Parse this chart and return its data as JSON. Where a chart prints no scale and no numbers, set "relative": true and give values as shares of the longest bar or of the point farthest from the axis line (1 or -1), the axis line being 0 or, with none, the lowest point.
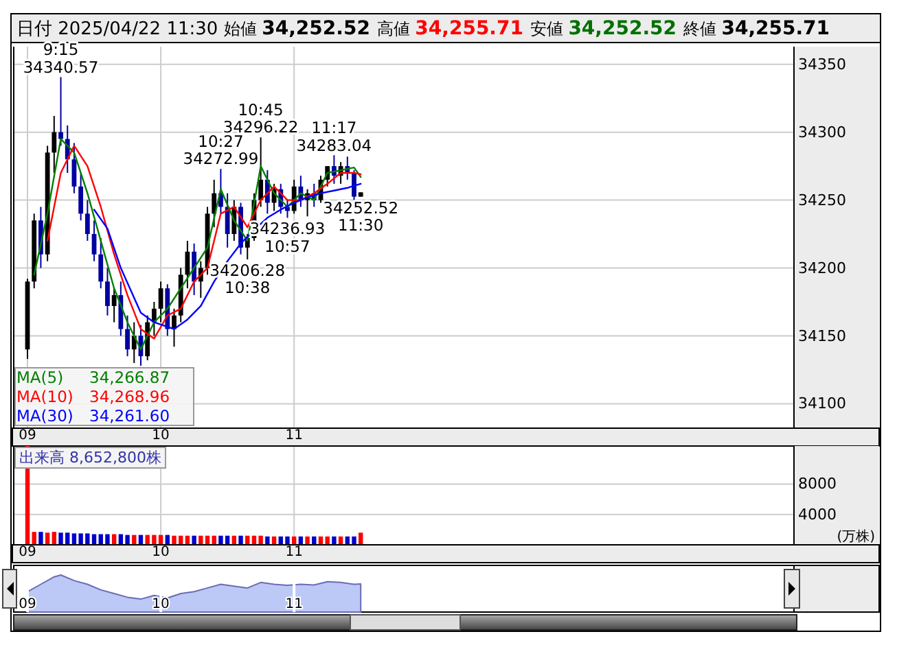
{
  "chart_data": [
    {
      "type": "candlestick",
      "title": "日付 2025/04/22 11:30",
      "annotations": [
        "始値 34,252.52",
        "高値 34,255.71",
        "安値 34,252.52",
        "終値 34,255.71",
        "34,266.87",
        "34,268.96",
        "34,261.60",
        {
          "text": "9:15\n34340.57",
          "x": 9.25,
          "y": 34340.57
        },
        {
          "text": "10:27\n34272.99",
          "x": 10.45,
          "y": 34272.99
        },
        {
          "text": "10:45\n34296.22",
          "x": 10.75,
          "y": 34296.22
        },
        {
          "text": "11:17\n34283.04",
          "x": 11.3,
          "y": 34283.04
        },
        {
          "text": "34206.28\n10:38",
          "x": 10.65,
          "y": 34206.28
        },
        {
          "text": "34236.93\n10:57",
          "x": 10.95,
          "y": 34236.93
        },
        {
          "text": "34252.52\n11:30",
          "x": 11.5,
          "y": 34252.52
        }
      ],
      "x": [
        9,
        9.05,
        9.1,
        9.15,
        9.2,
        9.25,
        9.3,
        9.35,
        9.4,
        9.45,
        9.5,
        9.55,
        9.6,
        9.65,
        9.7,
        9.75,
        9.8,
        9.85,
        9.9,
        9.95,
        10,
        10.05,
        10.1,
        10.15,
        10.2,
        10.25,
        10.3,
        10.35,
        10.4,
        10.45,
        10.5,
        10.55,
        10.6,
        10.65,
        10.7,
        10.75,
        10.8,
        10.85,
        10.9,
        10.95,
        11,
        11.05,
        11.1,
        11.15,
        11.2,
        11.25,
        11.3,
        11.35,
        11.4,
        11.45,
        11.5
      ],
      "ohlc": [
        [
          34140,
          34192,
          34133,
          34190
        ],
        [
          34190,
          34240,
          34185,
          34235
        ],
        [
          34235,
          34245,
          34200,
          34210
        ],
        [
          34210,
          34290,
          34205,
          34285
        ],
        [
          34285,
          34312,
          34270,
          34300
        ],
        [
          34300,
          34340.57,
          34290,
          34295
        ],
        [
          34295,
          34305,
          34270,
          34280
        ],
        [
          34280,
          34292,
          34255,
          34260
        ],
        [
          34260,
          34270,
          34235,
          34240
        ],
        [
          34240,
          34250,
          34220,
          34225
        ],
        [
          34225,
          34235,
          34205,
          34210
        ],
        [
          34210,
          34222,
          34185,
          34190
        ],
        [
          34190,
          34200,
          34165,
          34172
        ],
        [
          34172,
          34185,
          34160,
          34180
        ],
        [
          34180,
          34190,
          34150,
          34155
        ],
        [
          34155,
          34165,
          34135,
          34140
        ],
        [
          34140,
          34160,
          34130,
          34150
        ],
        [
          34150,
          34158,
          34128,
          34135
        ],
        [
          34135,
          34165,
          34132,
          34160
        ],
        [
          34160,
          34175,
          34150,
          34170
        ],
        [
          34170,
          34190,
          34160,
          34185
        ],
        [
          34185,
          34188,
          34150,
          34155
        ],
        [
          34155,
          34170,
          34142,
          34165
        ],
        [
          34165,
          34200,
          34160,
          34195
        ],
        [
          34195,
          34220,
          34185,
          34212
        ],
        [
          34212,
          34218,
          34180,
          34190
        ],
        [
          34190,
          34205,
          34178,
          34200
        ],
        [
          34200,
          34245,
          34195,
          34240
        ],
        [
          34240,
          34265,
          34230,
          34255
        ],
        [
          34255,
          34272.99,
          34240,
          34245
        ],
        [
          34245,
          34255,
          34215,
          34225
        ],
        [
          34225,
          34250,
          34220,
          34245
        ],
        [
          34245,
          34248,
          34210,
          34215
        ],
        [
          34215,
          34225,
          34206.28,
          34222
        ],
        [
          34222,
          34255,
          34220,
          34250
        ],
        [
          34250,
          34296.22,
          34245,
          34265
        ],
        [
          34265,
          34272,
          34240,
          34248
        ],
        [
          34248,
          34262,
          34242,
          34258
        ],
        [
          34258,
          34262,
          34240,
          34245
        ],
        [
          34245,
          34250,
          34236.93,
          34242
        ],
        [
          34242,
          34265,
          34240,
          34260
        ],
        [
          34260,
          34268,
          34245,
          34250
        ],
        [
          34250,
          34258,
          34238,
          34255
        ],
        [
          34255,
          34262,
          34245,
          34250
        ],
        [
          34250,
          34268,
          34248,
          34265
        ],
        [
          34265,
          34275,
          34260,
          34275
        ],
        [
          34275,
          34283.04,
          34262,
          34268
        ],
        [
          34268,
          34278,
          34262,
          34275
        ],
        [
          34275,
          34282,
          34265,
          34270
        ],
        [
          34270,
          34272,
          34250,
          34252.52
        ],
        [
          34252.52,
          34255.71,
          34252.52,
          34255.71
        ]
      ],
      "colors": [
        "#000000",
        "#000000",
        "#0000a0",
        "#000000",
        "#000000",
        "#0000a0",
        "#0000a0",
        "#0000a0",
        "#0000a0",
        "#0000a0",
        "#0000a0",
        "#0000a0",
        "#0000a0",
        "#000000",
        "#0000a0",
        "#0000a0",
        "#000000",
        "#0000a0",
        "#000000",
        "#000000",
        "#000000",
        "#0000a0",
        "#000000",
        "#000000",
        "#000000",
        "#0000a0",
        "#000000",
        "#000000",
        "#000000",
        "#0000a0",
        "#0000a0",
        "#000000",
        "#0000a0",
        "#000000",
        "#000000",
        "#000000",
        "#0000a0",
        "#000000",
        "#0000a0",
        "#0000a0",
        "#000000",
        "#0000a0",
        "#000000",
        "#0000a0",
        "#000000",
        "#000000",
        "#0000a0",
        "#000000",
        "#0000a0",
        "#0000a0",
        "#000000"
      ],
      "series": [
        {
          "type": "line",
          "name": "MA(5)",
          "color": "#008000",
          "x": [
            9.05,
            9.15,
            9.25,
            9.35,
            9.45,
            9.55,
            9.65,
            9.75,
            9.85,
            9.95,
            10.05,
            10.15,
            10.25,
            10.35,
            10.45,
            10.55,
            10.65,
            10.75,
            10.85,
            10.95,
            11.05,
            11.15,
            11.25,
            11.35,
            11.45,
            11.5
          ],
          "values": [
            34195,
            34240,
            34295,
            34285,
            34255,
            34220,
            34185,
            34160,
            34140,
            34160,
            34170,
            34185,
            34200,
            34215,
            34258,
            34235,
            34220,
            34275,
            34255,
            34245,
            34255,
            34250,
            34270,
            34272,
            34274,
            34267
          ]
        },
        {
          "type": "line",
          "name": "MA(10)",
          "color": "#ff0000",
          "x": [
            9.15,
            9.25,
            9.35,
            9.45,
            9.55,
            9.65,
            9.75,
            9.85,
            9.95,
            10.05,
            10.15,
            10.25,
            10.35,
            10.45,
            10.55,
            10.65,
            10.75,
            10.85,
            10.95,
            11.05,
            11.15,
            11.25,
            11.35,
            11.45,
            11.5
          ],
          "values": [
            34220,
            34270,
            34290,
            34275,
            34245,
            34210,
            34180,
            34155,
            34148,
            34165,
            34170,
            34190,
            34200,
            34240,
            34245,
            34230,
            34250,
            34260,
            34250,
            34250,
            34255,
            34262,
            34270,
            34270,
            34269
          ]
        },
        {
          "type": "line",
          "name": "MA(30)",
          "color": "#0000ff",
          "x": [
            9.5,
            9.6,
            9.7,
            9.85,
            9.95,
            10.1,
            10.2,
            10.3,
            10.4,
            10.5,
            10.6,
            10.7,
            10.8,
            10.9,
            11,
            11.1,
            11.2,
            11.3,
            11.4,
            11.5
          ],
          "values": [
            34243,
            34229,
            34200,
            34167,
            34160,
            34155,
            34162,
            34172,
            34190,
            34205,
            34218,
            34228,
            34237,
            34243,
            34248,
            34252,
            34255,
            34257,
            34259,
            34262
          ]
        }
      ],
      "xlim": [
        9,
        14.75
      ],
      "xticks": [
        {
          "value": 9,
          "label": "09"
        },
        {
          "value": 10,
          "label": "10"
        },
        {
          "value": 11,
          "label": "11"
        }
      ],
      "ylim": [
        34082,
        34363
      ],
      "yticks": [
        34100,
        34150,
        34200,
        34250,
        34300,
        34350
      ],
      "grid": true,
      "legend": "bottom left"
    },
    {
      "type": "bar",
      "title": "出来高  8,652,800株",
      "ylabel": "(万株)",
      "x": [
        9,
        9.05,
        9.1,
        9.15,
        9.2,
        9.25,
        9.3,
        9.35,
        9.4,
        9.45,
        9.5,
        9.55,
        9.6,
        9.65,
        9.7,
        9.75,
        9.8,
        9.85,
        9.9,
        9.95,
        10,
        10.05,
        10.1,
        10.15,
        10.2,
        10.25,
        10.3,
        10.35,
        10.4,
        10.45,
        10.5,
        10.55,
        10.6,
        10.65,
        10.7,
        10.75,
        10.8,
        10.85,
        10.9,
        10.95,
        11,
        11.05,
        11.1,
        11.15,
        11.2,
        11.25,
        11.3,
        11.35,
        11.4,
        11.45,
        11.5
      ],
      "values": [
        13000,
        1700,
        1700,
        1600,
        1700,
        1600,
        1600,
        1500,
        1500,
        1500,
        1400,
        1400,
        1400,
        1400,
        1400,
        1300,
        1300,
        1300,
        1300,
        1300,
        1300,
        1300,
        1200,
        1200,
        1200,
        1200,
        1200,
        1200,
        1200,
        1200,
        1200,
        1200,
        1200,
        1200,
        1200,
        1200,
        1100,
        1100,
        1100,
        1100,
        1100,
        1100,
        1100,
        1100,
        1100,
        1100,
        1100,
        1100,
        1100,
        1100,
        1600
      ],
      "colors": [
        "#ff0000",
        "#ff0000",
        "#0000cc",
        "#ff0000",
        "#ff0000",
        "#0000cc",
        "#0000cc",
        "#0000cc",
        "#0000cc",
        "#0000cc",
        "#0000cc",
        "#0000cc",
        "#0000cc",
        "#ff0000",
        "#0000cc",
        "#0000cc",
        "#ff0000",
        "#0000cc",
        "#ff0000",
        "#ff0000",
        "#ff0000",
        "#0000cc",
        "#ff0000",
        "#ff0000",
        "#ff0000",
        "#0000cc",
        "#ff0000",
        "#ff0000",
        "#ff0000",
        "#0000cc",
        "#0000cc",
        "#ff0000",
        "#0000cc",
        "#ff0000",
        "#ff0000",
        "#ff0000",
        "#0000cc",
        "#ff0000",
        "#0000cc",
        "#0000cc",
        "#ff0000",
        "#0000cc",
        "#ff0000",
        "#0000cc",
        "#ff0000",
        "#ff0000",
        "#0000cc",
        "#ff0000",
        "#0000cc",
        "#0000cc",
        "#ff0000"
      ],
      "xlim": [
        9,
        14.75
      ],
      "xticks": [
        {
          "value": 9,
          "label": "09"
        },
        {
          "value": 10,
          "label": "10"
        },
        {
          "value": 11,
          "label": "11"
        }
      ],
      "ylim": [
        0,
        13000
      ],
      "yticks": [
        4000,
        8000
      ],
      "grid": true
    },
    {
      "type": "area",
      "relative": true,
      "color": "#6b6bb5",
      "x": [
        9,
        9.1,
        9.2,
        9.25,
        9.35,
        9.45,
        9.55,
        9.65,
        9.75,
        9.85,
        9.95,
        10.05,
        10.15,
        10.25,
        10.35,
        10.45,
        10.55,
        10.65,
        10.75,
        10.85,
        10.95,
        11.05,
        11.15,
        11.25,
        11.35,
        11.45,
        11.5
      ],
      "values": [
        0.55,
        0.75,
        0.95,
        1,
        0.85,
        0.75,
        0.6,
        0.5,
        0.4,
        0.35,
        0.45,
        0.38,
        0.5,
        0.55,
        0.65,
        0.75,
        0.7,
        0.65,
        0.8,
        0.75,
        0.72,
        0.75,
        0.73,
        0.82,
        0.8,
        0.75,
        0.76
      ],
      "xlim": [
        9,
        14.75
      ],
      "xticks": [
        {
          "value": 9,
          "label": "09"
        },
        {
          "value": 10,
          "label": "10"
        },
        {
          "value": 11,
          "label": "11"
        }
      ],
      "grid": "x"
    }
  ]
}
